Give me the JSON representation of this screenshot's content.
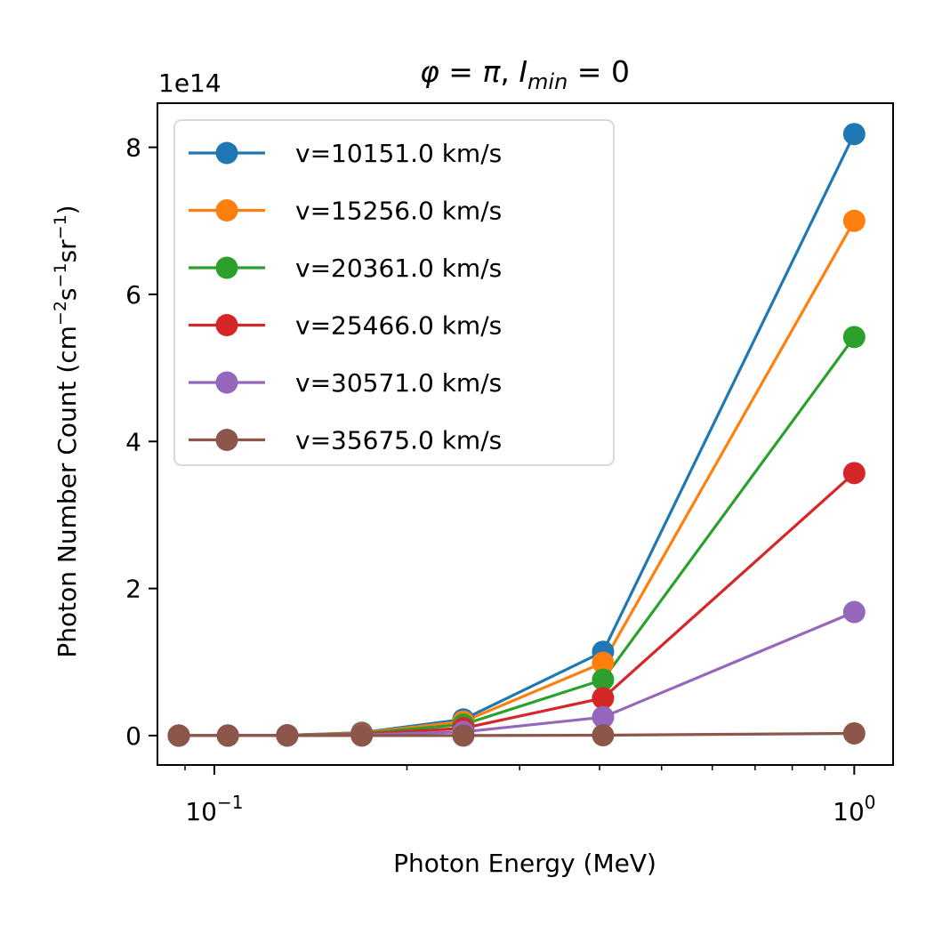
{
  "chart_data": {
    "type": "line",
    "title": {
      "phi": "φ",
      "eq1": " = ",
      "pi": "π",
      "comma": ", ",
      "I": "I",
      "sub": "min",
      "eq2": " = 0"
    },
    "xlabel": "Photon Energy (MeV)",
    "ylabel": {
      "base": "Photon Number Count (cm",
      "e1": "−2",
      "s": "s",
      "e2": "−1",
      "sr": "sr",
      "e3": "−1",
      "close": ")"
    },
    "x_scale": "log",
    "xlim": [
      0.0815,
      1.15
    ],
    "ylim": [
      -0.4,
      8.6
    ],
    "y_offset_label": "1e14",
    "y_ticks": [
      0,
      2,
      4,
      6,
      8
    ],
    "y_tick_labels": [
      "0",
      "2",
      "4",
      "6",
      "8"
    ],
    "x_ticks": [
      {
        "value": 0.1,
        "base": "10",
        "exp": "−1"
      },
      {
        "value": 1.0,
        "base": "10",
        "exp": "0"
      }
    ],
    "x_minor_ticks": [
      0.09,
      0.2,
      0.3,
      0.4,
      0.5,
      0.6,
      0.7,
      0.8,
      0.9
    ],
    "x": [
      0.088,
      0.105,
      0.13,
      0.17,
      0.245,
      0.405,
      1.0
    ],
    "series": [
      {
        "name": "v=10151.0 km/s",
        "color": "#1f77b4",
        "values": [
          0.0,
          0.0,
          0.005,
          0.04,
          0.22,
          1.14,
          8.18
        ]
      },
      {
        "name": "v=15256.0 km/s",
        "color": "#ff7f0e",
        "values": [
          0.0,
          0.0,
          0.004,
          0.035,
          0.19,
          0.99,
          7.0
        ]
      },
      {
        "name": "v=20361.0 km/s",
        "color": "#2ca02c",
        "values": [
          0.0,
          0.0,
          0.003,
          0.03,
          0.15,
          0.76,
          5.42
        ]
      },
      {
        "name": "v=25466.0 km/s",
        "color": "#d62728",
        "values": [
          0.0,
          0.0,
          0.002,
          0.02,
          0.1,
          0.51,
          3.57
        ]
      },
      {
        "name": "v=30571.0 km/s",
        "color": "#9467bd",
        "values": [
          0.0,
          0.0,
          0.001,
          0.01,
          0.05,
          0.25,
          1.68
        ]
      },
      {
        "name": "v=35675.0 km/s",
        "color": "#8c564b",
        "values": [
          0.0,
          0.0,
          0.0,
          0.0,
          0.0,
          0.005,
          0.03
        ]
      }
    ],
    "legend": "upper-left",
    "grid": false
  }
}
